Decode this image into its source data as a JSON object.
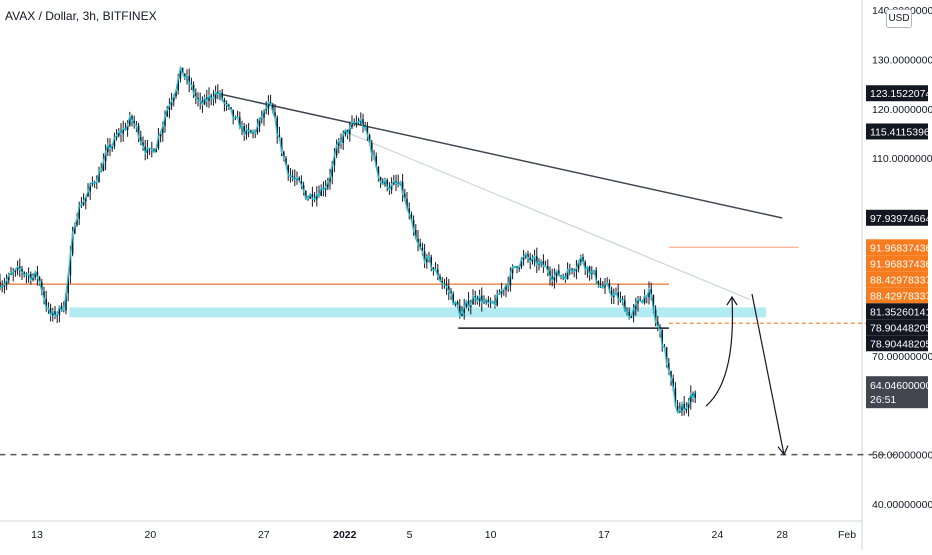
{
  "header": {
    "symbol_title": "AVAX / Dollar, 3h, BITFINEX",
    "currency": "USD"
  },
  "chart_data": {
    "type": "candlestick",
    "instrument": "AVAX / Dollar",
    "interval": "3h",
    "exchange": "BITFINEX",
    "ylim": [
      40,
      140
    ],
    "y_ticks": [
      {
        "value": 140,
        "label": "140.00000000"
      },
      {
        "value": 130,
        "label": "130.00000000"
      },
      {
        "value": 120,
        "label": "120.00000000"
      },
      {
        "value": 110,
        "label": "110.00000000"
      },
      {
        "value": 70,
        "label": "70.00000000"
      },
      {
        "value": 50,
        "label": "50.00000000"
      },
      {
        "value": 40,
        "label": "40.00000000"
      }
    ],
    "x_ticks": [
      "13",
      "20",
      "27",
      "2022",
      "5",
      "10",
      "17",
      "24",
      "28",
      "Feb"
    ],
    "price_labels": [
      {
        "value": 123.15,
        "label": "123.15220740",
        "bg": "#131722",
        "fg": "#ffffff"
      },
      {
        "value": 115.41,
        "label": "115.41153962",
        "bg": "#131722",
        "fg": "#ffffff"
      },
      {
        "value": 97.94,
        "label": "97.93974664",
        "bg": "#131722",
        "fg": "#ffffff"
      },
      {
        "value": 91.97,
        "label": "91.96837436",
        "bg": "#f57c1f",
        "fg": "#ffffff"
      },
      {
        "value": 91.97,
        "label": "91.96837436",
        "bg": "#f57c1f",
        "fg": "#ffffff"
      },
      {
        "value": 88.43,
        "label": "88.42978337",
        "bg": "#f57c1f",
        "fg": "#ffffff"
      },
      {
        "value": 88.43,
        "label": "88.42978337",
        "bg": "#f57c1f",
        "fg": "#ffffff"
      },
      {
        "value": 81.35,
        "label": "81.35260141",
        "bg": "#131722",
        "fg": "#ffffff"
      },
      {
        "value": 78.9,
        "label": "78.90448205",
        "bg": "#131722",
        "fg": "#ffffff"
      },
      {
        "value": 78.9,
        "label": "78.90448205",
        "bg": "#131722",
        "fg": "#ffffff"
      }
    ],
    "last_price": {
      "value": 64.05,
      "label": "64.04600000",
      "countdown": "26:51",
      "bg": "#434651",
      "fg": "#ffffff"
    },
    "colors": {
      "candle": "#131722",
      "close_line": "#26c6da",
      "zone": "#b2ebf2",
      "resistance": "#e65100",
      "dashed_orange": "#f57c1f",
      "light_orange": "#ffab91",
      "trendline": "#434651",
      "light_trend": "#d1d4dc",
      "grid_axis": "#d1d4dc"
    },
    "drawings": {
      "resistance_line": {
        "from": [
          "2021-12-10",
          84.5
        ],
        "to": [
          "2022-01-21",
          84.5
        ]
      },
      "support_zone": {
        "from": [
          "2021-12-15",
          79.8
        ],
        "to": [
          "2022-01-27",
          77.8
        ]
      },
      "support_line": {
        "from": [
          "2022-01-08",
          75.6
        ],
        "to": [
          "2022-01-21",
          75.6
        ]
      },
      "falling_trendline": {
        "from": [
          "2021-12-24",
          123.2
        ],
        "to": [
          "2022-01-28",
          97.9
        ]
      },
      "light_trendline": {
        "from": [
          "2022-01-01",
          115.4
        ],
        "to": [
          "2022-01-26",
          81.4
        ]
      },
      "orange_short_line": {
        "from": [
          "2022-01-21",
          91.97
        ],
        "to": [
          "2022-01-29",
          91.97
        ]
      },
      "orange_dashed_line": {
        "from": [
          "2022-01-21",
          76.6
        ],
        "to": [
          "2022-02-04",
          76.6
        ]
      },
      "target_dashed_line": {
        "from": [
          "2021-12-10",
          50.0
        ],
        "to": [
          "2022-02-04",
          50.0
        ]
      },
      "bounce_arrow_target": 79.0,
      "drop_arrow_target": 50.0
    }
  }
}
